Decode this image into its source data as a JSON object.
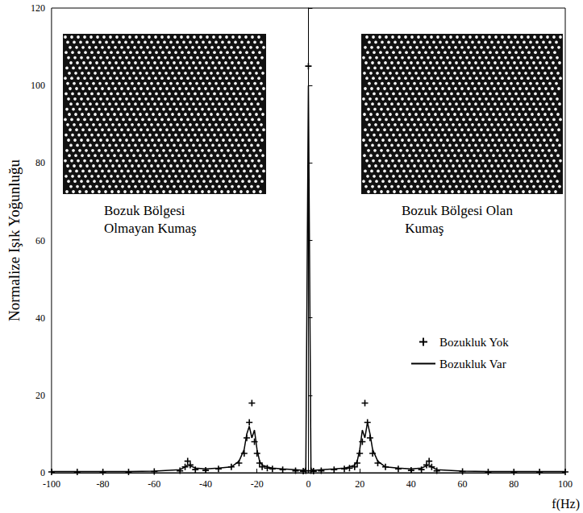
{
  "chart_data": {
    "type": "line",
    "x": [
      -100,
      -90,
      -80,
      -70,
      -60,
      -50,
      -48,
      -47,
      -46,
      -44,
      -40,
      -35,
      -30,
      -27,
      -25,
      -24,
      -23,
      -22,
      -21,
      -20,
      -19,
      -18,
      -16,
      -14,
      -10,
      -5,
      -2,
      -1,
      0,
      1,
      2,
      5,
      10,
      14,
      16,
      18,
      19,
      20,
      21,
      22,
      23,
      24,
      25,
      27,
      30,
      35,
      40,
      44,
      46,
      47,
      48,
      50,
      60,
      70,
      80,
      90,
      100
    ],
    "series": [
      {
        "name": "Bozukluk Yok",
        "color": "#000000",
        "marker": "plus",
        "line_style": "none",
        "values": [
          0.2,
          0.2,
          0.2,
          0.2,
          0.3,
          0.5,
          1.5,
          3,
          2,
          0.8,
          0.6,
          1,
          1.5,
          2.5,
          5,
          9,
          13,
          18,
          8,
          5,
          2.5,
          1.5,
          1.2,
          1,
          0.8,
          0.5,
          0.4,
          0.5,
          105,
          0.5,
          0.4,
          0.5,
          0.8,
          1,
          1.2,
          1.5,
          2.5,
          5,
          8,
          18,
          13,
          9,
          5,
          2.5,
          1.5,
          1,
          0.6,
          0.8,
          2,
          3,
          1.5,
          0.5,
          0.3,
          0.2,
          0.2,
          0.2,
          0.2
        ]
      },
      {
        "name": "Bozukluk Var",
        "color": "#000000",
        "marker": "none",
        "line_style": "solid",
        "values": [
          0.3,
          0.3,
          0.3,
          0.3,
          0.4,
          0.8,
          1.5,
          2,
          1.8,
          1.2,
          1,
          1.2,
          1.5,
          3,
          6,
          10,
          12,
          9,
          11,
          6,
          3,
          2,
          1.5,
          1.2,
          1,
          0.8,
          0.6,
          1,
          100,
          1,
          0.6,
          0.8,
          1,
          1.2,
          1.5,
          2,
          3,
          6,
          11,
          9,
          13,
          10,
          6,
          3,
          1.5,
          1.2,
          1,
          1.2,
          1.8,
          2,
          1.5,
          0.8,
          0.4,
          0.3,
          0.3,
          0.3,
          0.3
        ]
      }
    ],
    "xlim": [
      -100,
      100
    ],
    "ylim": [
      0,
      120
    ],
    "xticks": [
      -100,
      -80,
      -60,
      -40,
      -20,
      0,
      20,
      40,
      60,
      80,
      100
    ],
    "yticks": [
      0,
      20,
      40,
      60,
      80,
      100,
      120
    ],
    "xlabel": "f(Hz)",
    "ylabel": "Normalize Işık Yoğunluğu",
    "annotations": [
      "Bozuk Bölgesi Olmayan Kumaş",
      "Bozuk Bölgesi Olan Kumaş"
    ],
    "grid": false,
    "legend": "lower right"
  }
}
